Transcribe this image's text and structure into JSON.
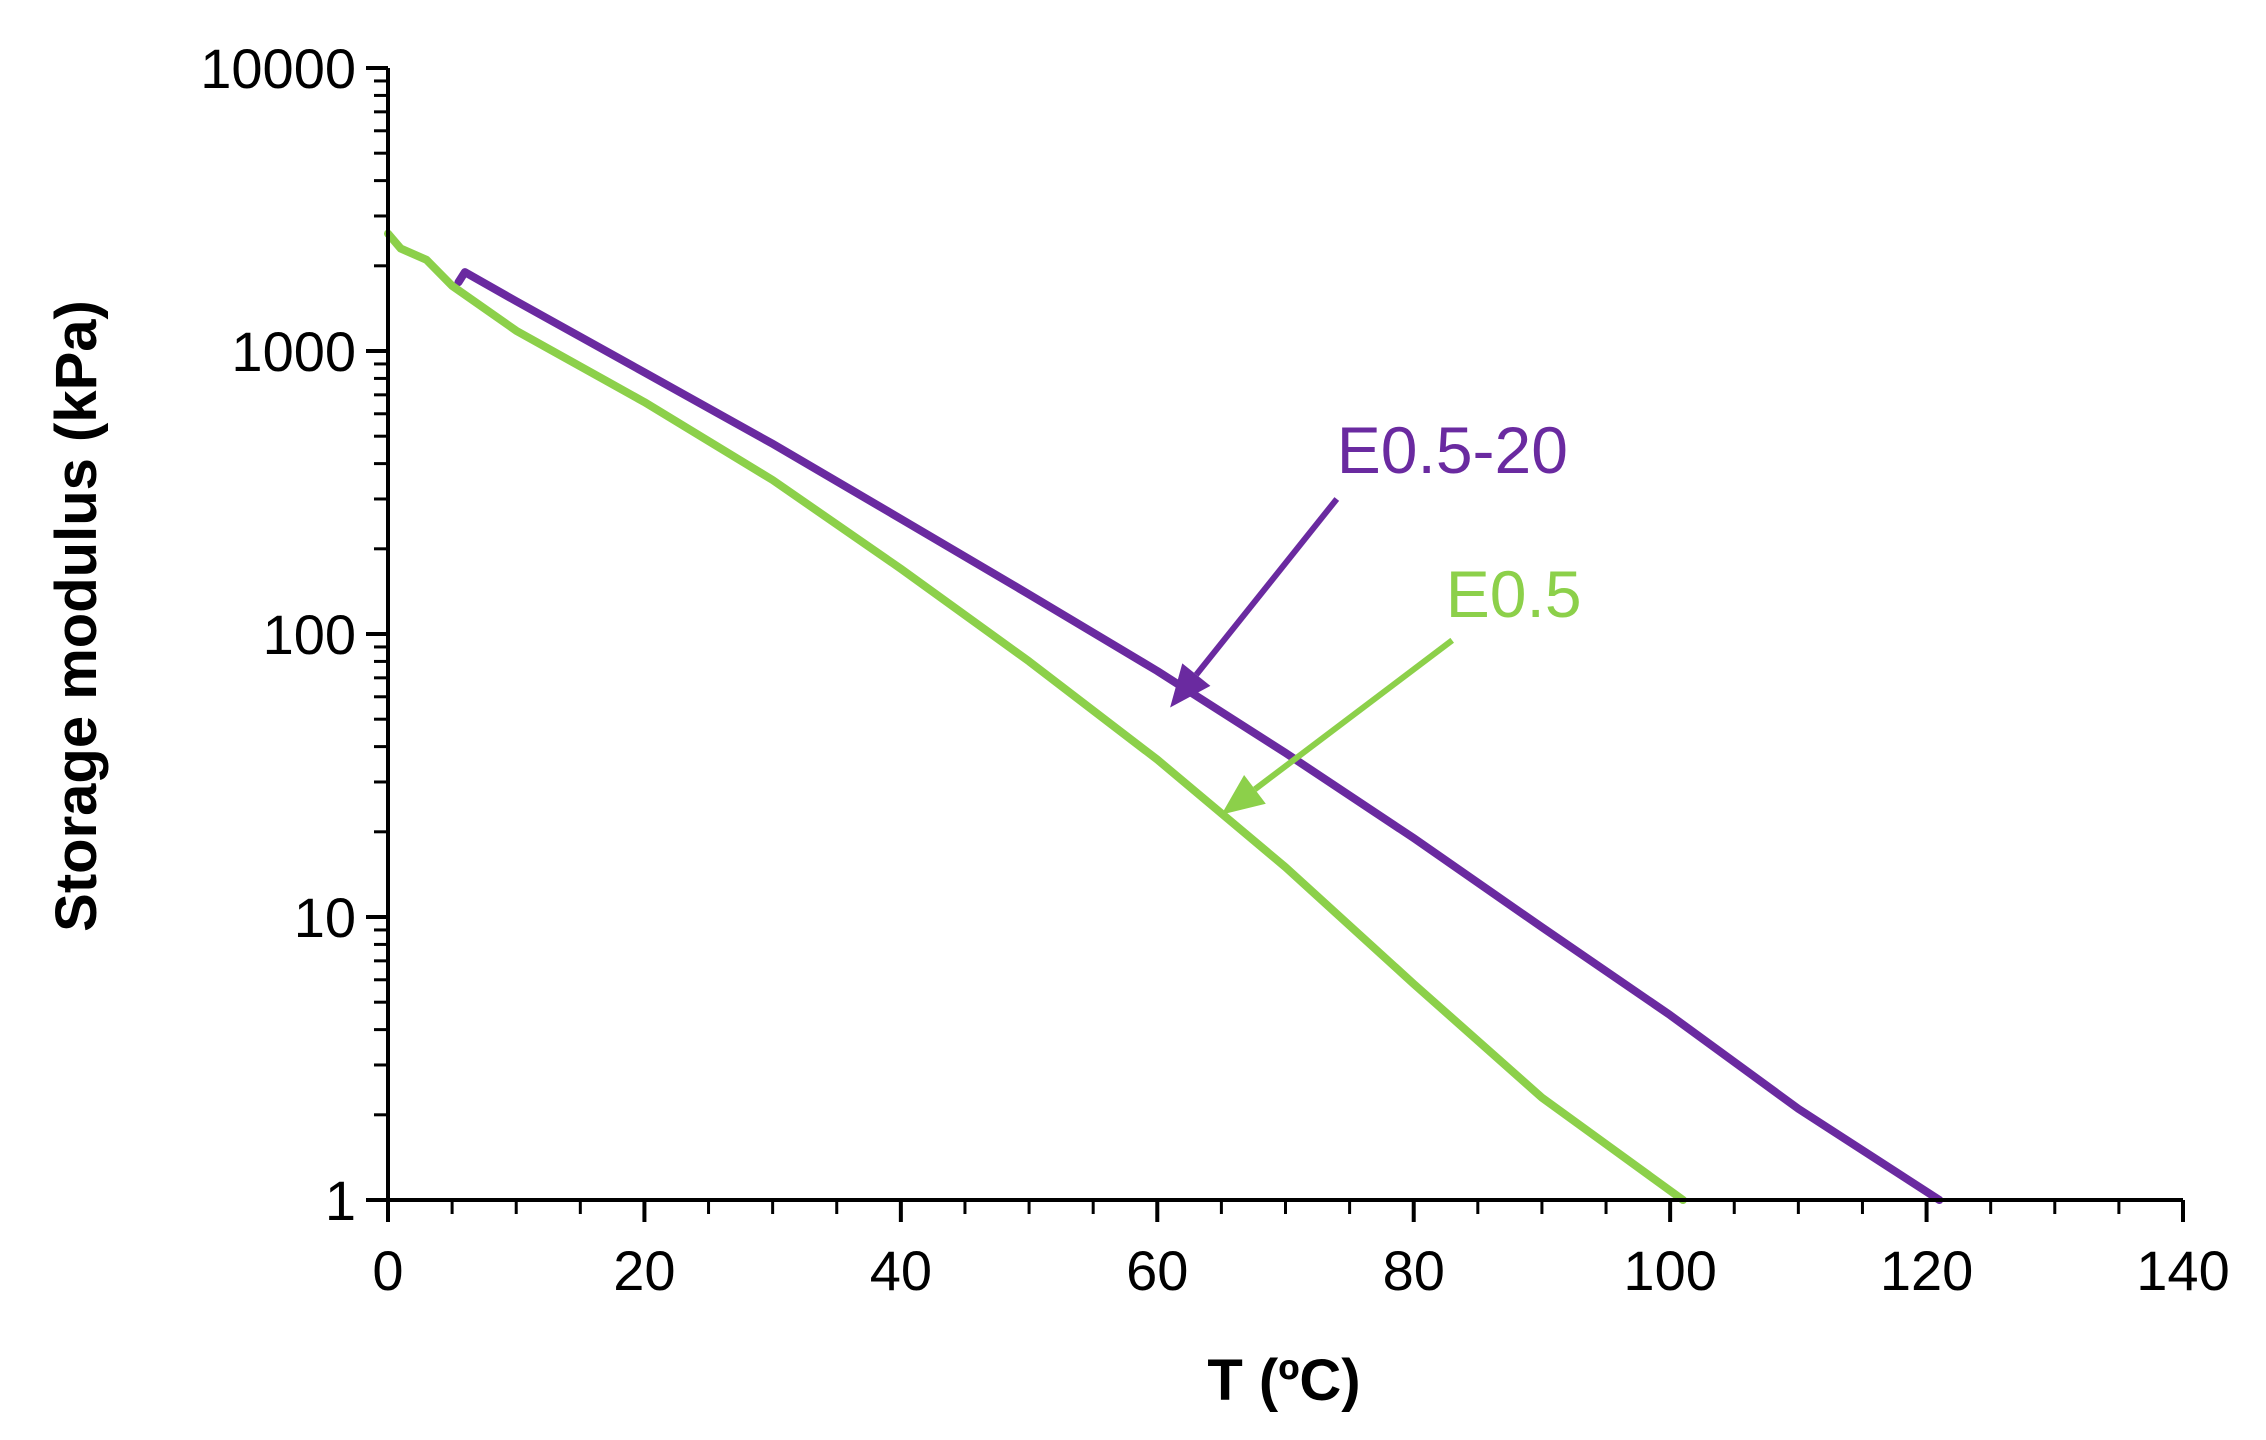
{
  "chart_data": {
    "type": "line",
    "title": "",
    "xlabel": "T (ºC)",
    "ylabel": "Storage modulus (kPa)",
    "xlim": [
      0,
      140
    ],
    "ylim": [
      1,
      10000
    ],
    "yscale": "log",
    "grid": false,
    "x_ticks": [
      0,
      20,
      40,
      60,
      80,
      100,
      120,
      140
    ],
    "x_tick_labels": [
      "0",
      "20",
      "40",
      "60",
      "80",
      "100",
      "120",
      "140"
    ],
    "y_ticks": [
      1,
      10,
      100,
      1000,
      10000
    ],
    "y_tick_labels": [
      "1",
      "10",
      "100",
      "1000",
      "10000"
    ],
    "series": [
      {
        "name": "E0.5-20",
        "color": "#6a2aa0",
        "points": [
          [
            5.5,
            1750
          ],
          [
            6,
            1900
          ],
          [
            10,
            1500
          ],
          [
            20,
            840
          ],
          [
            30,
            470
          ],
          [
            40,
            255
          ],
          [
            50,
            138
          ],
          [
            60,
            74
          ],
          [
            70,
            38
          ],
          [
            80,
            19
          ],
          [
            90,
            9.2
          ],
          [
            100,
            4.5
          ],
          [
            110,
            2.1
          ],
          [
            121,
            1
          ]
        ]
      },
      {
        "name": "E0.5",
        "color": "#8cd04a",
        "points": [
          [
            0,
            2600
          ],
          [
            1,
            2300
          ],
          [
            3,
            2100
          ],
          [
            5,
            1700
          ],
          [
            10,
            1180
          ],
          [
            20,
            660
          ],
          [
            30,
            350
          ],
          [
            40,
            170
          ],
          [
            50,
            80
          ],
          [
            60,
            36
          ],
          [
            70,
            15
          ],
          [
            80,
            5.8
          ],
          [
            90,
            2.3
          ],
          [
            101,
            1
          ]
        ]
      }
    ],
    "annotations": [
      {
        "text": "E0.5-20",
        "color": "#6a2aa0",
        "label_at": [
          74,
          370
        ],
        "arrow_from": [
          74,
          300
        ],
        "arrow_to": [
          61,
          55
        ]
      },
      {
        "text": "E0.5",
        "color": "#8cd04a",
        "label_at": [
          82.5,
          115
        ],
        "arrow_from": [
          83,
          95
        ],
        "arrow_to": [
          65,
          23
        ]
      }
    ]
  }
}
